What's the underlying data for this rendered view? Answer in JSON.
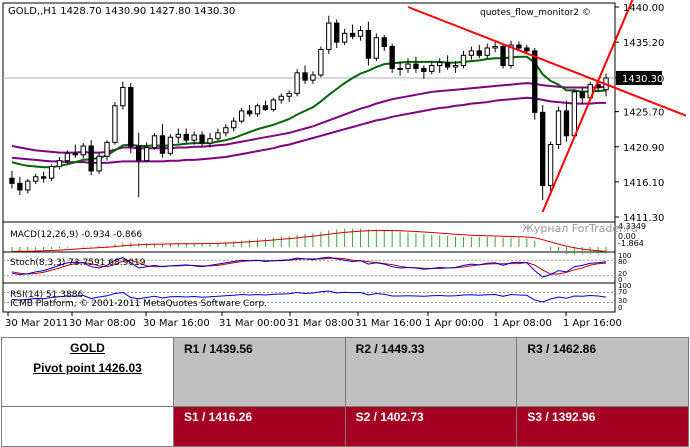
{
  "chart_data": {
    "type": "candlestick",
    "header": "GOLD,,H1  1428.70 1430.90 1427.80 1430.30",
    "overlay_label": "quotes_flow_monitor2 ©",
    "current_price_label": "1430.30",
    "current_price": 1430.3,
    "y_ticks": [
      "1440.00",
      "1435.20",
      "1430.30",
      "1425.70",
      "1420.90",
      "1416.10",
      "1411.30"
    ],
    "ylim": [
      1411.3,
      1440.0
    ],
    "x_ticks": [
      "30 Mar 2011",
      "30 Mar 08:00",
      "30 Mar 16:00",
      "31 Mar 00:00",
      "31 Mar 08:00",
      "31 Mar 16:00",
      "1 Apr 00:00",
      "1 Apr 08:00",
      "1 Apr 16:00"
    ],
    "candles": [
      [
        1416.6,
        1417.6,
        1415.2,
        1415.9
      ],
      [
        1415.9,
        1416.8,
        1414.3,
        1415.0
      ],
      [
        1415.0,
        1416.5,
        1414.5,
        1416.2
      ],
      [
        1416.2,
        1417.2,
        1415.8,
        1416.8
      ],
      [
        1416.8,
        1417.5,
        1416.0,
        1416.6
      ],
      [
        1416.6,
        1418.5,
        1416.2,
        1418.2
      ],
      [
        1418.2,
        1419.5,
        1417.8,
        1419.0
      ],
      [
        1419.0,
        1420.4,
        1418.6,
        1420.0
      ],
      [
        1420.0,
        1421.2,
        1419.4,
        1419.8
      ],
      [
        1419.8,
        1421.4,
        1419.3,
        1421.0
      ],
      [
        1421.0,
        1421.8,
        1417.0,
        1417.6
      ],
      [
        1417.6,
        1420.0,
        1417.2,
        1419.6
      ],
      [
        1419.6,
        1421.8,
        1419.0,
        1421.5
      ],
      [
        1421.5,
        1427.0,
        1421.2,
        1426.5
      ],
      [
        1426.5,
        1429.8,
        1426.0,
        1429.0
      ],
      [
        1429.0,
        1429.6,
        1420.0,
        1421.0
      ],
      [
        1421.0,
        1422.8,
        1414.0,
        1419.0
      ],
      [
        1419.0,
        1421.5,
        1418.8,
        1420.8
      ],
      [
        1420.8,
        1422.8,
        1420.5,
        1422.4
      ],
      [
        1422.4,
        1424.0,
        1419.4,
        1420.0
      ],
      [
        1420.0,
        1422.6,
        1419.7,
        1422.2
      ],
      [
        1422.2,
        1423.4,
        1421.4,
        1422.6
      ],
      [
        1422.6,
        1423.4,
        1421.4,
        1421.8
      ],
      [
        1421.8,
        1423.0,
        1421.2,
        1422.5
      ],
      [
        1422.5,
        1423.0,
        1421.0,
        1421.4
      ],
      [
        1421.4,
        1422.8,
        1420.8,
        1422.0
      ],
      [
        1422.0,
        1423.4,
        1421.6,
        1422.8
      ],
      [
        1422.8,
        1424.0,
        1422.3,
        1423.5
      ],
      [
        1423.5,
        1424.9,
        1423.0,
        1424.4
      ],
      [
        1424.4,
        1426.2,
        1424.1,
        1425.8
      ],
      [
        1425.8,
        1426.6,
        1425.0,
        1425.4
      ],
      [
        1425.4,
        1426.8,
        1425.0,
        1426.5
      ],
      [
        1426.5,
        1427.2,
        1425.8,
        1426.0
      ],
      [
        1426.0,
        1427.6,
        1425.7,
        1427.3
      ],
      [
        1427.3,
        1428.2,
        1426.8,
        1427.8
      ],
      [
        1427.8,
        1428.6,
        1427.0,
        1428.2
      ],
      [
        1428.2,
        1431.5,
        1427.8,
        1431.0
      ],
      [
        1431.0,
        1432.0,
        1429.5,
        1430.0
      ],
      [
        1430.0,
        1431.2,
        1429.5,
        1430.7
      ],
      [
        1430.7,
        1434.6,
        1430.4,
        1434.2
      ],
      [
        1434.2,
        1438.8,
        1433.6,
        1437.8
      ],
      [
        1437.8,
        1438.3,
        1434.4,
        1435.2
      ],
      [
        1435.2,
        1437.0,
        1434.8,
        1436.4
      ],
      [
        1436.4,
        1437.6,
        1435.6,
        1436.0
      ],
      [
        1436.0,
        1437.4,
        1435.4,
        1436.8
      ],
      [
        1436.8,
        1438.0,
        1432.0,
        1433.0
      ],
      [
        1433.0,
        1436.4,
        1432.6,
        1435.8
      ],
      [
        1435.8,
        1436.2,
        1434.0,
        1434.6
      ],
      [
        1434.6,
        1435.0,
        1431.0,
        1431.6
      ],
      [
        1431.6,
        1432.6,
        1430.6,
        1431.6
      ],
      [
        1431.6,
        1433.0,
        1431.0,
        1432.2
      ],
      [
        1432.2,
        1433.2,
        1431.0,
        1431.6
      ],
      [
        1431.6,
        1432.0,
        1430.2,
        1431.2
      ],
      [
        1431.2,
        1432.6,
        1430.8,
        1432.0
      ],
      [
        1432.0,
        1433.0,
        1431.0,
        1432.4
      ],
      [
        1432.4,
        1433.4,
        1431.4,
        1431.8
      ],
      [
        1431.8,
        1432.6,
        1431.0,
        1432.0
      ],
      [
        1432.0,
        1434.0,
        1431.6,
        1433.4
      ],
      [
        1433.4,
        1434.6,
        1432.8,
        1434.0
      ],
      [
        1434.0,
        1434.8,
        1433.0,
        1433.4
      ],
      [
        1433.4,
        1435.0,
        1433.0,
        1434.4
      ],
      [
        1434.4,
        1435.2,
        1433.8,
        1434.6
      ],
      [
        1434.6,
        1434.8,
        1431.6,
        1432.0
      ],
      [
        1432.0,
        1435.4,
        1431.6,
        1434.8
      ],
      [
        1434.8,
        1435.3,
        1434.0,
        1434.4
      ],
      [
        1434.4,
        1434.8,
        1433.6,
        1434.0
      ],
      [
        1434.0,
        1434.4,
        1424.6,
        1425.6
      ],
      [
        1425.6,
        1426.6,
        1413.6,
        1415.6
      ],
      [
        1415.6,
        1421.6,
        1414.8,
        1421.2
      ],
      [
        1421.2,
        1426.4,
        1420.6,
        1425.8
      ],
      [
        1425.8,
        1427.2,
        1421.6,
        1422.4
      ],
      [
        1422.4,
        1428.8,
        1422.0,
        1428.4
      ],
      [
        1428.4,
        1429.0,
        1426.8,
        1427.6
      ],
      [
        1427.6,
        1429.8,
        1427.3,
        1429.4
      ],
      [
        1429.4,
        1430.0,
        1428.4,
        1429.0
      ],
      [
        1428.7,
        1430.9,
        1427.8,
        1430.3
      ]
    ],
    "ma_fast": [
      1418.8,
      1418.5,
      1418.3,
      1418.2,
      1418.1,
      1418.1,
      1418.3,
      1418.5,
      1418.8,
      1419.1,
      1419.2,
      1419.4,
      1419.7,
      1420.4,
      1421.1,
      1421.2,
      1421.0,
      1421.0,
      1421.1,
      1421.0,
      1421.1,
      1421.2,
      1421.3,
      1421.4,
      1421.4,
      1421.4,
      1421.6,
      1421.8,
      1422.1,
      1422.5,
      1422.9,
      1423.3,
      1423.6,
      1423.9,
      1424.3,
      1424.7,
      1425.3,
      1425.8,
      1426.3,
      1427.1,
      1428.0,
      1428.8,
      1429.6,
      1430.3,
      1430.9,
      1431.3,
      1431.8,
      1432.2,
      1432.3,
      1432.4,
      1432.5,
      1432.5,
      1432.5,
      1432.5,
      1432.5,
      1432.4,
      1432.4,
      1432.5,
      1432.6,
      1432.7,
      1432.9,
      1433.0,
      1433.0,
      1433.1,
      1433.2,
      1433.2,
      1432.4,
      1430.8,
      1429.9,
      1429.4,
      1428.6,
      1428.6,
      1428.4,
      1428.5,
      1428.5,
      1428.6
    ],
    "ma_mid": [
      1421.0,
      1420.8,
      1420.6,
      1420.4,
      1420.3,
      1420.2,
      1420.1,
      1420.1,
      1420.1,
      1420.2,
      1420.1,
      1420.1,
      1420.2,
      1420.5,
      1420.8,
      1420.8,
      1420.7,
      1420.7,
      1420.7,
      1420.7,
      1420.7,
      1420.8,
      1420.8,
      1420.9,
      1420.9,
      1421.0,
      1421.1,
      1421.2,
      1421.4,
      1421.6,
      1421.8,
      1422.0,
      1422.2,
      1422.4,
      1422.6,
      1422.8,
      1423.1,
      1423.4,
      1423.7,
      1424.1,
      1424.5,
      1424.9,
      1425.3,
      1425.7,
      1426.1,
      1426.4,
      1426.8,
      1427.1,
      1427.4,
      1427.6,
      1427.8,
      1428.0,
      1428.2,
      1428.4,
      1428.5,
      1428.6,
      1428.7,
      1428.8,
      1428.9,
      1429.0,
      1429.1,
      1429.2,
      1429.3,
      1429.4,
      1429.5,
      1429.6,
      1429.5,
      1429.3,
      1429.2,
      1429.1,
      1429.0,
      1429.0,
      1429.0,
      1429.0,
      1429.0,
      1429.1
    ],
    "ma_slow": [
      1419.4,
      1419.3,
      1419.2,
      1419.1,
      1419.0,
      1418.9,
      1418.9,
      1418.8,
      1418.8,
      1418.8,
      1418.7,
      1418.7,
      1418.7,
      1418.8,
      1418.9,
      1418.9,
      1418.9,
      1418.9,
      1418.9,
      1418.9,
      1419.0,
      1419.0,
      1419.1,
      1419.1,
      1419.2,
      1419.3,
      1419.4,
      1419.5,
      1419.7,
      1419.9,
      1420.1,
      1420.3,
      1420.5,
      1420.7,
      1421.0,
      1421.2,
      1421.5,
      1421.8,
      1422.1,
      1422.4,
      1422.7,
      1423.0,
      1423.3,
      1423.6,
      1423.9,
      1424.2,
      1424.5,
      1424.7,
      1425.0,
      1425.2,
      1425.4,
      1425.6,
      1425.8,
      1426.0,
      1426.2,
      1426.3,
      1426.5,
      1426.6,
      1426.8,
      1426.9,
      1427.0,
      1427.2,
      1427.3,
      1427.4,
      1427.5,
      1427.6,
      1427.5,
      1427.3,
      1427.1,
      1427.0,
      1426.9,
      1426.8,
      1426.8,
      1426.8,
      1426.9,
      1426.9
    ],
    "trendlines": [
      {
        "from": [
          50,
          1440.0
        ],
        "to": [
          76,
          1429.0
        ],
        "color": "#ff0000"
      },
      {
        "from": [
          67,
          1412.0
        ],
        "to": [
          76,
          1435.0
        ],
        "color": "#ff0000"
      }
    ],
    "indicators": {
      "macd_label": "MACD(12,26,9) -0.934 -0.866",
      "macd_scale": [
        "4.3349",
        "0.00",
        "-1.864"
      ],
      "macd_hist": [
        -0.6,
        -0.55,
        -0.5,
        -0.45,
        -0.4,
        -0.3,
        -0.2,
        -0.1,
        0.0,
        0.1,
        0.1,
        0.15,
        0.2,
        0.4,
        0.6,
        0.6,
        0.5,
        0.5,
        0.5,
        0.5,
        0.5,
        0.5,
        0.5,
        0.5,
        0.5,
        0.5,
        0.6,
        0.7,
        0.8,
        0.9,
        1.0,
        1.1,
        1.2,
        1.3,
        1.4,
        1.5,
        1.7,
        1.8,
        1.9,
        2.1,
        2.3,
        2.4,
        2.5,
        2.5,
        2.5,
        2.4,
        2.4,
        2.3,
        2.2,
        2.1,
        2.0,
        1.9,
        1.8,
        1.7,
        1.6,
        1.5,
        1.4,
        1.4,
        1.4,
        1.4,
        1.4,
        1.4,
        1.3,
        1.3,
        1.3,
        1.2,
        0.8,
        0.0,
        -0.5,
        -0.8,
        -1.0,
        -1.0,
        -1.0,
        -0.95,
        -0.9,
        -0.93
      ],
      "stoch_label": "Stoch(8,3,3) 73.7591 68.9019",
      "stoch_scale": [
        "100",
        "80",
        "20",
        "0"
      ],
      "stoch_main": [
        30,
        25,
        28,
        35,
        40,
        50,
        60,
        70,
        72,
        70,
        55,
        50,
        60,
        80,
        90,
        70,
        50,
        55,
        60,
        55,
        58,
        60,
        62,
        58,
        55,
        60,
        65,
        70,
        75,
        80,
        78,
        80,
        75,
        78,
        80,
        82,
        88,
        85,
        82,
        88,
        92,
        85,
        80,
        75,
        78,
        65,
        70,
        65,
        55,
        50,
        52,
        50,
        45,
        48,
        52,
        50,
        52,
        60,
        65,
        62,
        68,
        70,
        60,
        70,
        72,
        70,
        40,
        15,
        25,
        40,
        35,
        55,
        60,
        68,
        70,
        73.8
      ],
      "stoch_signal": [
        35,
        30,
        27,
        29,
        34,
        42,
        50,
        60,
        67,
        71,
        66,
        58,
        55,
        63,
        77,
        80,
        70,
        58,
        55,
        57,
        58,
        58,
        60,
        60,
        58,
        58,
        60,
        65,
        70,
        75,
        78,
        79,
        78,
        78,
        78,
        80,
        83,
        85,
        85,
        85,
        87,
        88,
        86,
        80,
        78,
        74,
        71,
        67,
        63,
        57,
        52,
        51,
        49,
        48,
        48,
        50,
        51,
        54,
        59,
        62,
        65,
        67,
        66,
        67,
        67,
        71,
        61,
        42,
        27,
        27,
        33,
        43,
        50,
        61,
        66,
        68.9
      ],
      "rsi_label": "RSI(14) 51.3886",
      "rsi_scale": [
        "100",
        "70",
        "30",
        "0"
      ],
      "rsi": [
        42,
        40,
        43,
        46,
        45,
        50,
        53,
        56,
        55,
        58,
        46,
        52,
        57,
        66,
        70,
        50,
        45,
        50,
        55,
        48,
        53,
        54,
        52,
        54,
        51,
        53,
        55,
        57,
        59,
        62,
        60,
        62,
        60,
        63,
        64,
        65,
        70,
        66,
        68,
        73,
        76,
        68,
        71,
        69,
        70,
        60,
        66,
        63,
        56,
        56,
        57,
        56,
        55,
        57,
        58,
        56,
        57,
        60,
        61,
        59,
        61,
        62,
        55,
        62,
        60,
        59,
        40,
        32,
        44,
        52,
        47,
        56,
        55,
        58,
        56,
        51.4
      ],
      "copyright": "ICMB Platform, © 2001-2011 MetaQuotes Software Corp."
    }
  },
  "watermark": "Журнал ForTrader.ru",
  "pivot_table": {
    "instrument": "GOLD",
    "pivot": "Pivot point 1426.03",
    "r1": "R1 / 1439.56",
    "r2": "R2 / 1449.33",
    "r3": "R3 / 1462.86",
    "s1": "S1 / 1416.26",
    "s2": "S2 / 1402.73",
    "s3": "S3 / 1392.96"
  }
}
